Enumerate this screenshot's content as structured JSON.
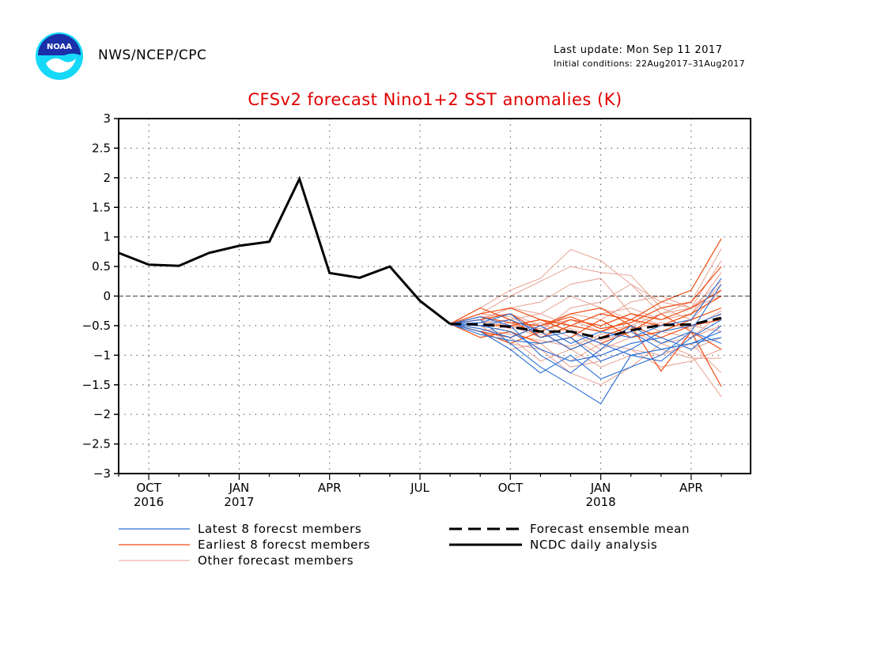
{
  "header": {
    "org": "NWS/NCEP/CPC",
    "last_update": "Last update: Mon Sep 11 2017",
    "initial_conditions": "Initial conditions: 22Aug2017–31Aug2017",
    "logo_text": "NOAA"
  },
  "colors": {
    "title": "#e00000",
    "latest": "#2a6fd6",
    "earliest": "#f04a10",
    "other": "#e8a090",
    "mean": "#000000",
    "analysis": "#000000"
  },
  "chart_data": {
    "type": "line",
    "title": "CFSv2 forecast Nino1+2 SST anomalies (K)",
    "ylim": [
      -3,
      3
    ],
    "y_ticks": [
      "3",
      "2.5",
      "2",
      "1.5",
      "1",
      "0.5",
      "0",
      "−0.5",
      "−1",
      "−1.5",
      "−2",
      "−2.5",
      "−3"
    ],
    "x_ticks": [
      {
        "month": "OCT",
        "year": "2016"
      },
      {
        "month": "JAN",
        "year": "2017"
      },
      {
        "month": "APR",
        "year": ""
      },
      {
        "month": "JUL",
        "year": ""
      },
      {
        "month": "OCT",
        "year": ""
      },
      {
        "month": "JAN",
        "year": "2018"
      },
      {
        "month": "APR",
        "year": ""
      }
    ],
    "grid": true,
    "legend": [
      {
        "label": "Latest 8 forecst members",
        "style": "latest"
      },
      {
        "label": "Earliest 8 forecst members",
        "style": "earliest"
      },
      {
        "label": "Other forecast members",
        "style": "other"
      },
      {
        "label": "Forecast ensemble mean",
        "style": "mean"
      },
      {
        "label": "NCDC daily analysis",
        "style": "analysis"
      }
    ],
    "analysis": {
      "x": [
        "2016-09",
        "2016-10",
        "2016-11",
        "2016-12",
        "2017-01",
        "2017-02",
        "2017-03",
        "2017-04",
        "2017-05",
        "2017-06",
        "2017-07",
        "2017-08"
      ],
      "values": [
        0.73,
        0.53,
        0.51,
        0.73,
        0.85,
        0.92,
        1.98,
        0.39,
        0.31,
        0.5,
        -0.08,
        -0.47
      ]
    },
    "ensemble_mean": {
      "x": [
        "2017-08",
        "2017-09",
        "2017-10",
        "2017-11",
        "2017-12",
        "2018-01",
        "2018-02",
        "2018-03",
        "2018-04",
        "2018-05"
      ],
      "values": [
        -0.47,
        -0.48,
        -0.52,
        -0.6,
        -0.6,
        -0.71,
        -0.58,
        -0.49,
        -0.48,
        -0.37
      ]
    },
    "latest_members": [
      [
        -0.47,
        -0.4,
        -0.8,
        -1.2,
        -1.5,
        -1.82,
        -1.0,
        -0.9,
        -0.8,
        -0.7
      ],
      [
        -0.47,
        -0.6,
        -0.9,
        -1.3,
        -1.0,
        -1.4,
        -1.2,
        -1.0,
        -0.6,
        0.2
      ],
      [
        -0.47,
        -0.5,
        -0.6,
        -0.9,
        -1.1,
        -1.0,
        -0.8,
        -0.7,
        -0.9,
        -0.5
      ],
      [
        -0.47,
        -0.45,
        -0.3,
        -0.7,
        -0.6,
        -0.8,
        -1.0,
        -1.1,
        -0.7,
        -0.4
      ],
      [
        -0.47,
        -0.55,
        -0.7,
        -0.5,
        -0.8,
        -0.6,
        -0.7,
        -0.5,
        -0.4,
        0.3
      ],
      [
        -0.47,
        -0.35,
        -0.5,
        -1.0,
        -1.3,
        -0.9,
        -0.5,
        -0.8,
        -0.6,
        -0.8
      ],
      [
        -0.47,
        -0.65,
        -0.75,
        -0.8,
        -0.7,
        -1.1,
        -0.9,
        -0.6,
        -0.5,
        -0.3
      ],
      [
        -0.47,
        -0.5,
        -0.4,
        -0.6,
        -0.9,
        -0.7,
        -0.6,
        -0.9,
        -0.8,
        -0.6
      ]
    ],
    "earliest_members": [
      [
        -0.47,
        -0.3,
        -0.2,
        -0.4,
        -0.5,
        -0.3,
        -0.4,
        -0.1,
        0.1,
        0.97
      ],
      [
        -0.47,
        -0.6,
        -0.7,
        -0.5,
        -0.3,
        -0.2,
        -0.5,
        -1.27,
        -0.6,
        -1.53
      ],
      [
        -0.47,
        -0.4,
        -0.3,
        -0.6,
        -0.4,
        -0.5,
        -0.3,
        -0.4,
        -0.2,
        0.1
      ],
      [
        -0.47,
        -0.7,
        -0.6,
        -0.8,
        -0.7,
        -0.4,
        -0.7,
        -0.6,
        -0.4,
        -0.2
      ],
      [
        -0.47,
        -0.5,
        -0.5,
        -0.4,
        -0.6,
        -0.8,
        -0.6,
        -0.3,
        -0.6,
        -0.9
      ],
      [
        -0.47,
        -0.2,
        -0.4,
        -0.7,
        -0.5,
        -0.6,
        -0.4,
        -0.5,
        -0.3,
        0.0
      ],
      [
        -0.47,
        -0.6,
        -0.8,
        -0.6,
        -0.9,
        -0.7,
        -0.5,
        -0.7,
        -0.5,
        -0.4
      ],
      [
        -0.47,
        -0.35,
        -0.45,
        -0.5,
        -0.35,
        -0.55,
        -0.45,
        -0.2,
        -0.1,
        0.5
      ]
    ],
    "other_members": [
      [
        -0.47,
        -0.2,
        0.1,
        0.3,
        0.79,
        0.6,
        0.2,
        -0.1,
        -0.2,
        0.6
      ],
      [
        -0.47,
        -0.3,
        0.0,
        0.25,
        0.5,
        0.4,
        0.35,
        -0.2,
        -0.4,
        0.1
      ],
      [
        -0.47,
        -0.4,
        -0.2,
        -0.1,
        0.2,
        0.3,
        -0.3,
        -0.5,
        -0.3,
        0.2
      ],
      [
        -0.47,
        -0.5,
        -0.6,
        -0.9,
        -1.3,
        -1.5,
        -1.2,
        -0.8,
        -1.0,
        -1.7
      ],
      [
        -0.47,
        -0.55,
        -0.7,
        -1.1,
        -0.9,
        -1.2,
        -1.0,
        -0.9,
        -1.05,
        -1.05
      ],
      [
        -0.47,
        -0.6,
        -0.5,
        -0.7,
        -0.6,
        -0.9,
        -0.7,
        -0.6,
        -0.7,
        -0.5
      ],
      [
        -0.47,
        -0.45,
        -0.4,
        -0.3,
        -0.5,
        -0.3,
        -0.2,
        -0.4,
        -0.3,
        0.4
      ],
      [
        -0.47,
        -0.35,
        -0.3,
        -0.5,
        -0.4,
        -0.6,
        -0.5,
        -0.3,
        -0.2,
        0.0
      ],
      [
        -0.47,
        -0.5,
        -0.8,
        -0.9,
        -1.1,
        -0.8,
        -0.9,
        -1.0,
        -0.8,
        -1.3
      ],
      [
        -0.47,
        -0.4,
        -0.55,
        -0.45,
        -0.7,
        -1.0,
        -0.8,
        -0.7,
        -0.9,
        -0.7
      ],
      [
        -0.47,
        -0.3,
        -0.35,
        -0.6,
        -0.2,
        -0.1,
        0.2,
        -0.3,
        -0.1,
        0.8
      ],
      [
        -0.47,
        -0.55,
        -0.65,
        -0.75,
        -0.85,
        -0.65,
        -0.55,
        -0.45,
        -0.55,
        -0.25
      ],
      [
        -0.47,
        -0.45,
        -0.5,
        -0.55,
        -0.3,
        -0.4,
        -0.1,
        0.0,
        -0.2,
        0.25
      ],
      [
        -0.47,
        -0.6,
        -0.9,
        -0.8,
        -1.2,
        -1.1,
        -0.9,
        -1.2,
        -1.1,
        -0.9
      ],
      [
        -0.47,
        -0.4,
        -0.2,
        -0.3,
        0.0,
        -0.2,
        -0.4,
        -0.6,
        -0.5,
        -0.6
      ],
      [
        -0.47,
        -0.5,
        -0.45,
        -0.65,
        -0.55,
        -0.75,
        -0.6,
        -0.8,
        -0.7,
        -0.3
      ]
    ]
  }
}
